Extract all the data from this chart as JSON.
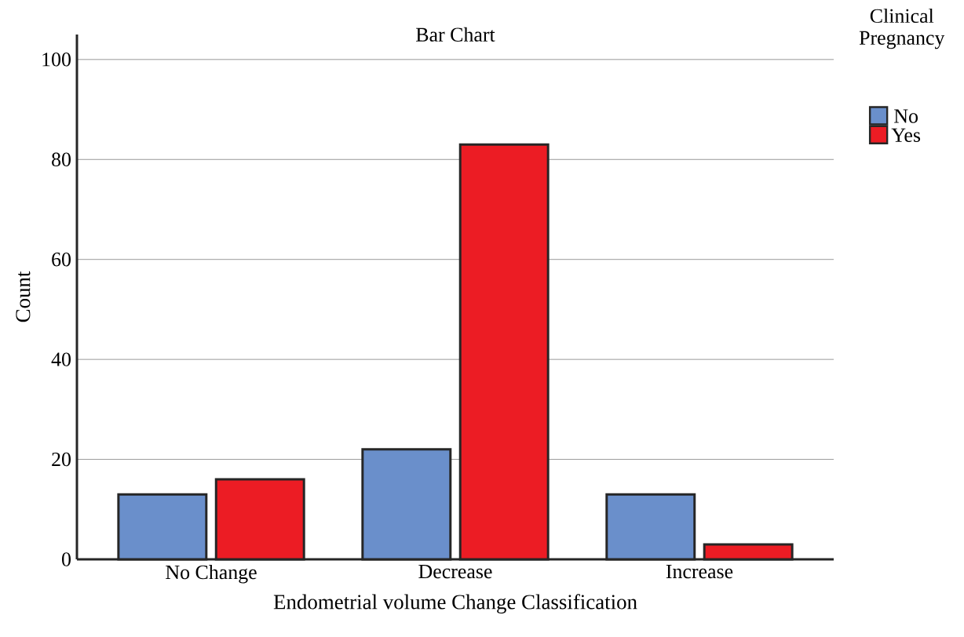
{
  "chart_data": {
    "type": "bar",
    "title": "Bar Chart",
    "xlabel": "Endometrial volume Change Classification",
    "ylabel": "Count",
    "legend_title": "Clinical Pregnancy",
    "categories": [
      "No Change",
      "Decrease",
      "Increase"
    ],
    "series": [
      {
        "name": "No",
        "color": "#6a8fcb",
        "values": [
          13,
          22,
          13
        ]
      },
      {
        "name": "Yes",
        "color": "#ec1c24",
        "values": [
          16,
          83,
          3
        ]
      }
    ],
    "ylim": [
      0,
      105
    ],
    "yticks": [
      0,
      20,
      40,
      60,
      80,
      100
    ],
    "grid": "y",
    "legend": "top right"
  }
}
